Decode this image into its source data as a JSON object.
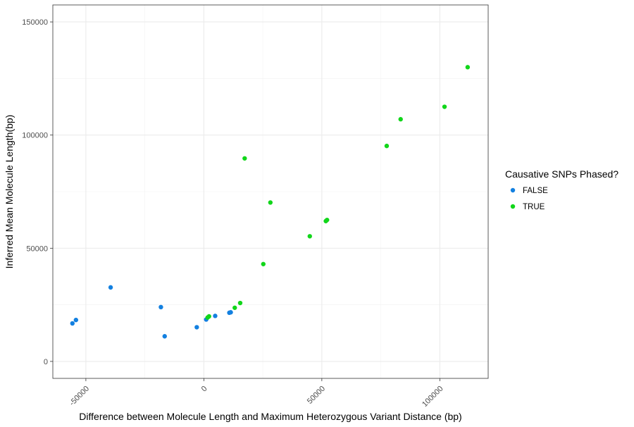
{
  "chart_data": {
    "type": "scatter",
    "title": "",
    "xlabel": "Difference between Molecule Length and Maximum Heterozygous Variant Distance (bp)",
    "ylabel": "Inferred Mean Molecule Length(bp)",
    "xlim": [
      -64000,
      120500
    ],
    "ylim": [
      -7500,
      157500
    ],
    "x_ticks": [
      -50000,
      0,
      50000,
      100000
    ],
    "x_tick_labels": [
      "-50000",
      "0",
      "50000",
      "100000"
    ],
    "y_ticks": [
      0,
      50000,
      100000,
      150000
    ],
    "y_tick_labels": [
      "0",
      "50000",
      "100000",
      "150000"
    ],
    "grid": true,
    "legend": {
      "title": "Causative SNPs Phased?",
      "position": "right"
    },
    "series": [
      {
        "name": "FALSE",
        "color": "#1380e0",
        "points": [
          [
            -55700,
            16800
          ],
          [
            -54200,
            18300
          ],
          [
            -39500,
            32700
          ],
          [
            -18200,
            24000
          ],
          [
            -16600,
            11100
          ],
          [
            -3000,
            15100
          ],
          [
            1000,
            18500
          ],
          [
            4800,
            20100
          ],
          [
            10800,
            21500
          ],
          [
            11400,
            21700
          ]
        ]
      },
      {
        "name": "TRUE",
        "color": "#11d61a",
        "points": [
          [
            1600,
            19400
          ],
          [
            2200,
            19900
          ],
          [
            13100,
            23700
          ],
          [
            15400,
            25800
          ],
          [
            17300,
            89700
          ],
          [
            25200,
            43000
          ],
          [
            28200,
            70200
          ],
          [
            44900,
            55300
          ],
          [
            51700,
            62000
          ],
          [
            52200,
            62500
          ],
          [
            77500,
            95200
          ],
          [
            83400,
            107000
          ],
          [
            102000,
            112500
          ],
          [
            111800,
            130000
          ]
        ]
      }
    ]
  }
}
